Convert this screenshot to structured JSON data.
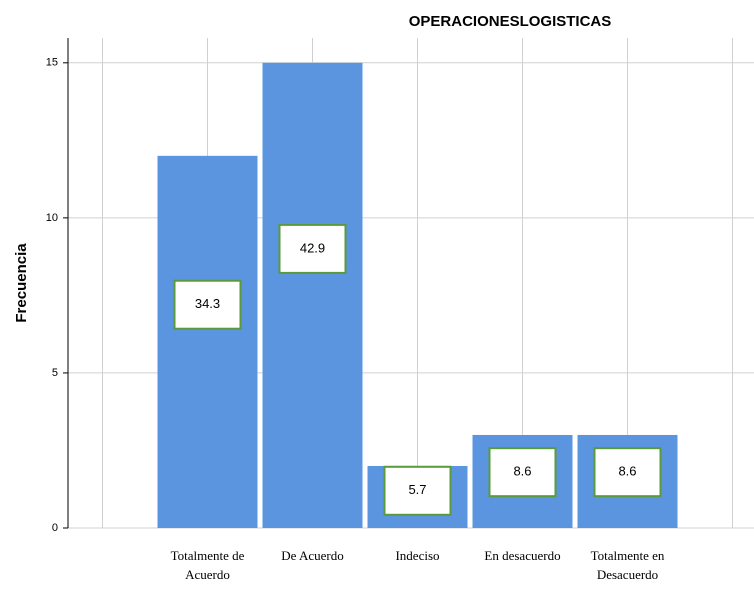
{
  "chart_data": {
    "type": "bar",
    "title": "OPERACIONESLOGISTICAS",
    "y_label": "Frecuencia",
    "categories": [
      "Totalmente de Acuerdo",
      "De Acuerdo",
      "Indeciso",
      "En desacuerdo",
      "Totalmente en Desacuerdo"
    ],
    "values": [
      12,
      15,
      2,
      3,
      3
    ],
    "percentages": [
      34.3,
      42.9,
      5.7,
      8.6,
      8.6
    ],
    "color": "#5b95e0",
    "ylim": [
      0,
      15.8
    ],
    "yticks": [
      0,
      5,
      10,
      15
    ],
    "grid": true
  }
}
